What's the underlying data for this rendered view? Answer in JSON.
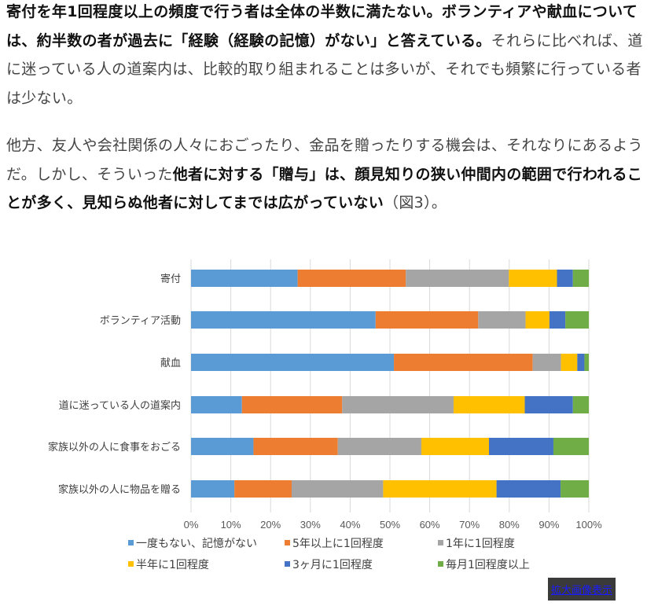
{
  "paragraph1": {
    "bold1": "寄付を年1回程度以上の頻度で行う者は全体の半数に満たない。ボランティアや献血については、約半数の者が過去に「経験（経験の記憶）がない」と答えている。",
    "normal1": "それらに比べれば、道に迷っている人の道案内は、比較的取り組まれることは多いが、それでも頻繁に行っている者は少ない。"
  },
  "paragraph2": {
    "normal1": "他方、友人や会社関係の人々におごったり、金品を贈ったりする機会は、それなりにあるようだ。しかし、そういった",
    "bold1": "他者に対する「贈与」は、顔見知りの狭い仲間内の範囲で行われることが多く、見知らぬ他者に対してまでは広がっていない",
    "normal2": "（図3）。"
  },
  "chart_data": {
    "type": "bar",
    "orientation": "horizontal-stacked-100",
    "categories": [
      "寄付",
      "ボランティア活動",
      "献血",
      "道に迷っている人の道案内",
      "家族以外の人に食事をおごる",
      "家族以外の人に物品を贈る"
    ],
    "series": [
      {
        "name": "一度もない、記憶がない",
        "color": "#5b9bd5",
        "values": [
          26.8,
          46.4,
          51.0,
          12.8,
          15.7,
          10.9
        ]
      },
      {
        "name": "5年以上に1回程度",
        "color": "#ed7d31",
        "values": [
          27.2,
          25.8,
          34.9,
          25.2,
          21.2,
          14.4
        ]
      },
      {
        "name": "1年に1回程度",
        "color": "#a5a5a5",
        "values": [
          25.9,
          11.9,
          7.1,
          28.0,
          21.0,
          23.0
        ]
      },
      {
        "name": "半年に1回程度",
        "color": "#ffc000",
        "values": [
          12.1,
          6.0,
          4.1,
          17.9,
          17.0,
          28.5
        ]
      },
      {
        "name": "3ヶ月に1回程度",
        "color": "#4472c4",
        "values": [
          4.0,
          4.0,
          1.8,
          12.1,
          16.2,
          16.1
        ]
      },
      {
        "name": "毎月1回程度以上",
        "color": "#70ad47",
        "values": [
          4.0,
          5.9,
          1.1,
          4.0,
          8.9,
          7.1
        ]
      }
    ],
    "xticks": [
      "0%",
      "10%",
      "20%",
      "30%",
      "40%",
      "50%",
      "60%",
      "70%",
      "80%",
      "90%",
      "100%"
    ],
    "xlim": [
      0,
      100
    ],
    "grid": true,
    "legend_position": "bottom"
  },
  "zoom_button": "拡大画像表示"
}
